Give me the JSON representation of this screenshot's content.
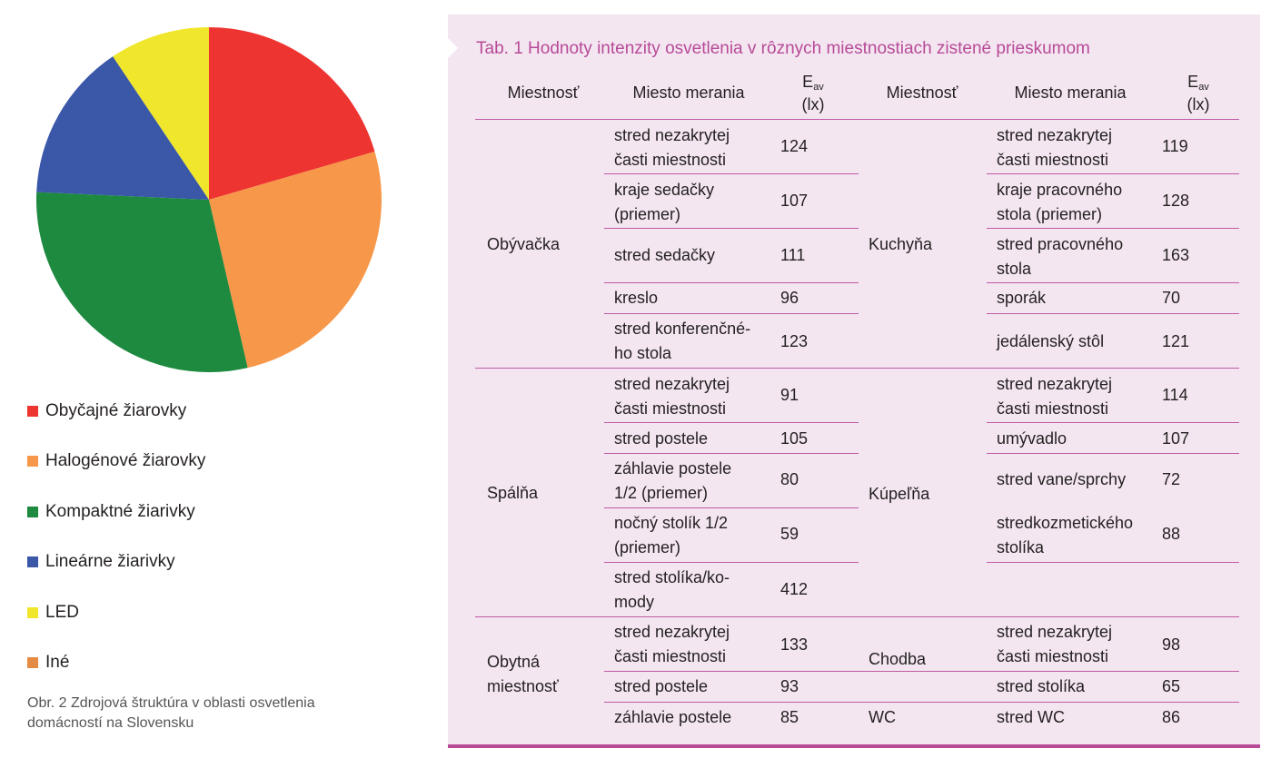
{
  "figure": {
    "caption": "Obr. 2 Zdrojová štruktúra v oblasti osvetlenia domácností na Slovensku"
  },
  "chart_data": {
    "type": "pie",
    "title": "",
    "categories": [
      "Obyčajné žiarovky",
      "Halogénové žiarovky",
      "Kompaktné žiarivky",
      "Lineárne žiarivky",
      "LED",
      "Iné"
    ],
    "values": [
      20.5,
      25.9,
      29.3,
      14.9,
      9.4,
      0.0
    ],
    "colors": [
      "#ee3431",
      "#f7974a",
      "#1d8a3f",
      "#3a57a8",
      "#f0e62b",
      "#e58c44"
    ],
    "legend_position": "bottom"
  },
  "table": {
    "title": "Tab. 1 Hodnoty intenzity osvetlenia v rôznych miestnostiach zistené prieskumom",
    "headers": {
      "room": "Miestnosť",
      "place": "Miesto merania",
      "eav_main": "E",
      "eav_sub": "av",
      "unit": "(lx)"
    },
    "left": [
      {
        "room": "Obývačka",
        "rows": [
          {
            "place": [
              "stred nezakrytej",
              "časti miestnosti"
            ],
            "value": "124"
          },
          {
            "place": [
              "kraje sedačky",
              "(priemer)"
            ],
            "value": "107"
          },
          {
            "place": [
              "stred sedačky"
            ],
            "value": "111"
          },
          {
            "place": [
              "kreslo"
            ],
            "value": "96"
          },
          {
            "place": [
              "stred konferenčné-",
              "ho stola"
            ],
            "value": "123"
          }
        ]
      },
      {
        "room": "Spálňa",
        "rows": [
          {
            "place": [
              "stred nezakrytej",
              "časti miestnosti"
            ],
            "value": "91"
          },
          {
            "place": [
              "stred postele"
            ],
            "value": "105"
          },
          {
            "place": [
              "záhlavie postele",
              "1/2 (priemer)"
            ],
            "value": "80"
          },
          {
            "place": [
              "nočný stolík 1/2",
              "(priemer)"
            ],
            "value": "59"
          },
          {
            "place": [
              "stred stolíka/ko-",
              "mody"
            ],
            "value": "412"
          }
        ]
      },
      {
        "room": "Obytná miestnosť",
        "rows": [
          {
            "place": [
              "stred nezakrytej",
              "časti miestnosti"
            ],
            "value": "133"
          },
          {
            "place": [
              "stred postele"
            ],
            "value": "93"
          },
          {
            "place": [
              "záhlavie postele"
            ],
            "value": "85"
          }
        ]
      }
    ],
    "right": [
      {
        "room": "Kuchyňa",
        "rows": [
          {
            "place": [
              "stred nezakrytej",
              "časti miestnosti"
            ],
            "value": "119"
          },
          {
            "place": [
              "kraje pracovného",
              "stola (priemer)"
            ],
            "value": "128"
          },
          {
            "place": [
              "stred pracovného",
              "stola"
            ],
            "value": "163"
          },
          {
            "place": [
              "sporák"
            ],
            "value": "70"
          },
          {
            "place": [
              "jedálenský stôl"
            ],
            "value": "121"
          }
        ]
      },
      {
        "room": "Kúpeľňa",
        "rows": [
          {
            "place": [
              "stred nezakrytej",
              "časti miestnosti"
            ],
            "value": "114"
          },
          {
            "place": [
              "umývadlo"
            ],
            "value": "107"
          },
          {
            "place": [
              "stred vane/sprchy"
            ],
            "value": "72"
          },
          {
            "place": [
              "stredkozmetického",
              "stolíka"
            ],
            "value": "88"
          }
        ]
      },
      {
        "room": "Chodba",
        "rows": [
          {
            "place": [
              "stred nezakrytej",
              "časti miestnosti"
            ],
            "value": "98"
          },
          {
            "place": [
              "stred stolíka"
            ],
            "value": "65"
          }
        ]
      },
      {
        "room": "WC",
        "rows": [
          {
            "place": [
              "stred WC"
            ],
            "value": "86"
          }
        ]
      }
    ]
  }
}
